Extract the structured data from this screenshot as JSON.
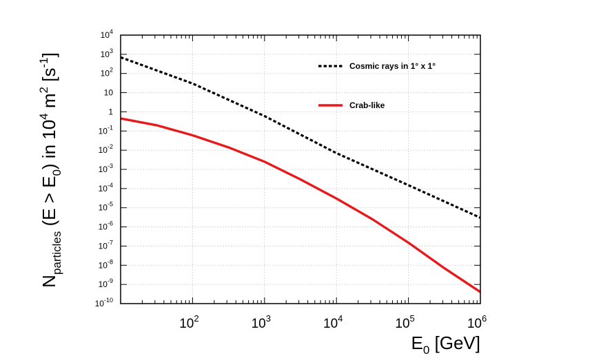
{
  "chart_data": {
    "type": "line",
    "title": "",
    "xscale": "log",
    "yscale": "log",
    "xlim": [
      10,
      1000000
    ],
    "ylim": [
      1e-10,
      10000
    ],
    "grid": true,
    "legend_position": "top-right",
    "xlabel": {
      "main": "E",
      "sub": "0",
      "unit": " [GeV]"
    },
    "ylabel": {
      "n": "N",
      "n_sub": "particles",
      "part1": " (E > E",
      "part1_sub": "0",
      "part2": ") in 10",
      "part2_sup": "4",
      "part3": " m",
      "part3_sup": "2",
      "part4": " [s",
      "part4_sup": "-1",
      "part5": "]"
    },
    "x_ticks": [
      {
        "value": 100,
        "base": "10",
        "exp": "2"
      },
      {
        "value": 1000,
        "base": "10",
        "exp": "3"
      },
      {
        "value": 10000,
        "base": "10",
        "exp": "4"
      },
      {
        "value": 100000,
        "base": "10",
        "exp": "5"
      },
      {
        "value": 1000000,
        "base": "10",
        "exp": "6"
      }
    ],
    "y_ticks": [
      {
        "value": 10000,
        "base": "10",
        "exp": "4"
      },
      {
        "value": 1000,
        "base": "10",
        "exp": "3"
      },
      {
        "value": 100,
        "base": "10",
        "exp": "2"
      },
      {
        "value": 10,
        "base": "10",
        "exp": ""
      },
      {
        "value": 1,
        "base": "1",
        "exp": ""
      },
      {
        "value": 0.1,
        "base": "10",
        "exp": "-1"
      },
      {
        "value": 0.01,
        "base": "10",
        "exp": "-2"
      },
      {
        "value": 0.001,
        "base": "10",
        "exp": "-3"
      },
      {
        "value": 0.0001,
        "base": "10",
        "exp": "-4"
      },
      {
        "value": 1e-05,
        "base": "10",
        "exp": "-5"
      },
      {
        "value": 1e-06,
        "base": "10",
        "exp": "-6"
      },
      {
        "value": 1e-07,
        "base": "10",
        "exp": "-7"
      },
      {
        "value": 1e-08,
        "base": "10",
        "exp": "-8"
      },
      {
        "value": 1e-09,
        "base": "10",
        "exp": "-9"
      },
      {
        "value": 1e-10,
        "base": "10",
        "exp": "-10"
      }
    ],
    "series": [
      {
        "name": "Cosmic rays in 1° x 1°",
        "color": "#000000",
        "style": "dashed",
        "x": [
          10,
          100,
          1000,
          10000,
          100000,
          1000000
        ],
        "y": [
          700,
          30,
          0.6,
          0.007,
          0.00015,
          3e-06
        ]
      },
      {
        "name": "Crab-like",
        "color": "#e8191a",
        "style": "solid",
        "x": [
          10,
          31.6,
          100,
          316,
          1000,
          3162,
          10000,
          31623,
          100000,
          316228,
          1000000
        ],
        "y": [
          0.45,
          0.2,
          0.06,
          0.014,
          0.0025,
          0.0003,
          3e-05,
          2.5e-06,
          1.5e-07,
          7e-09,
          4e-10
        ]
      }
    ]
  }
}
